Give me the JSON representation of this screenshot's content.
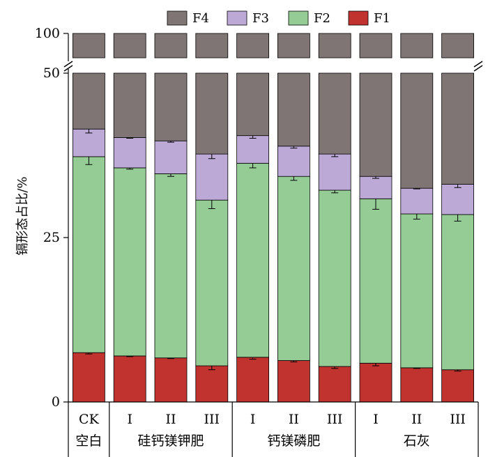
{
  "chart_data": {
    "type": "bar",
    "stacked": true,
    "ylabel": "镉形态占比/%",
    "y_axis_break": {
      "lower_segment": [
        0,
        50
      ],
      "upper_segment_top_tick": 100
    },
    "yticks": [
      "0",
      "25",
      "50",
      "100"
    ],
    "legend": {
      "placement": "top",
      "entries": [
        "F4",
        "F3",
        "F2",
        "F1"
      ]
    },
    "colors": {
      "F1": "#c0332e",
      "F2": "#95cc95",
      "F3": "#bca9d6",
      "F4": "#7f7574"
    },
    "categories": [
      "CK",
      "I",
      "II",
      "III",
      "I",
      "II",
      "III",
      "I",
      "II",
      "III"
    ],
    "groups": [
      {
        "label": "空白",
        "span": 1
      },
      {
        "label": "硅钙镁钾肥",
        "span": 3
      },
      {
        "label": "钙镁磷肥",
        "span": 3
      },
      {
        "label": "石灰",
        "span": 3
      }
    ],
    "series": [
      {
        "name": "F1",
        "values": [
          7.5,
          7.0,
          6.7,
          5.5,
          6.8,
          6.3,
          5.4,
          5.9,
          5.2,
          4.9
        ],
        "errors": [
          0.2,
          0.1,
          0.1,
          0.6,
          0.3,
          0.2,
          0.3,
          0.4,
          0.1,
          0.2
        ]
      },
      {
        "name": "F2",
        "values": [
          29.8,
          28.6,
          28.0,
          25.2,
          29.5,
          28.0,
          26.8,
          25.0,
          23.4,
          23.6
        ],
        "errors": [
          1.2,
          0.2,
          0.4,
          1.3,
          0.7,
          0.6,
          0.4,
          1.6,
          0.8,
          1.0
        ]
      },
      {
        "name": "F3",
        "values": [
          4.2,
          4.6,
          5.0,
          7.0,
          4.2,
          4.6,
          5.5,
          3.4,
          3.9,
          4.6
        ],
        "errors": [
          0.6,
          0.1,
          0.2,
          0.7,
          0.4,
          0.3,
          0.4,
          0.3,
          0.1,
          0.5
        ]
      },
      {
        "name": "F4",
        "values": [
          58.5,
          59.8,
          60.3,
          62.3,
          59.5,
          61.1,
          62.3,
          65.7,
          67.5,
          66.9
        ]
      }
    ]
  }
}
